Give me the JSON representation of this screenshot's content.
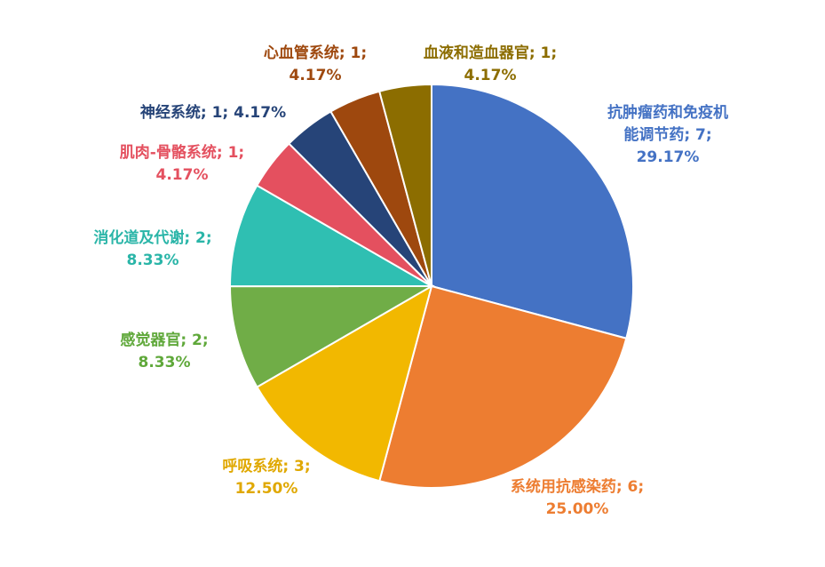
{
  "chart_data": {
    "type": "pie",
    "values": [
      29.17,
      25.0,
      12.5,
      8.33,
      8.33,
      4.17,
      4.17,
      4.17,
      4.17
    ],
    "value_labels": [
      [
        "抗肿瘤药和免疫机",
        "能调节药; 7;",
        "29.17%"
      ],
      [
        "系统用抗感染药; 6;",
        "25.00%"
      ],
      [
        "呼吸系统; 3;",
        "12.50%"
      ],
      [
        "感觉器官; 2;",
        "8.33%"
      ],
      [
        "消化道及代谢; 2;",
        "8.33%"
      ],
      [
        "肌肉-骨骼系统; 1;",
        "4.17%"
      ],
      [
        "神经系统; 1; 4.17%"
      ],
      [
        "心血管系统; 1;",
        "4.17%"
      ],
      [
        "血液和造血器官; 1;",
        "4.17%"
      ]
    ],
    "colors": [
      "#4472c4",
      "#ed7d31",
      "#f2b800",
      "#70ad47",
      "#2fbfb2",
      "#e4505f",
      "#264478",
      "#9e480e",
      "#8c6d00"
    ],
    "label_colors": [
      "#4472c4",
      "#ed7d31",
      "#e0a800",
      "#5fa83a",
      "#2ab5a8",
      "#e4505f",
      "#264478",
      "#9e480e",
      "#8c6d00"
    ]
  }
}
